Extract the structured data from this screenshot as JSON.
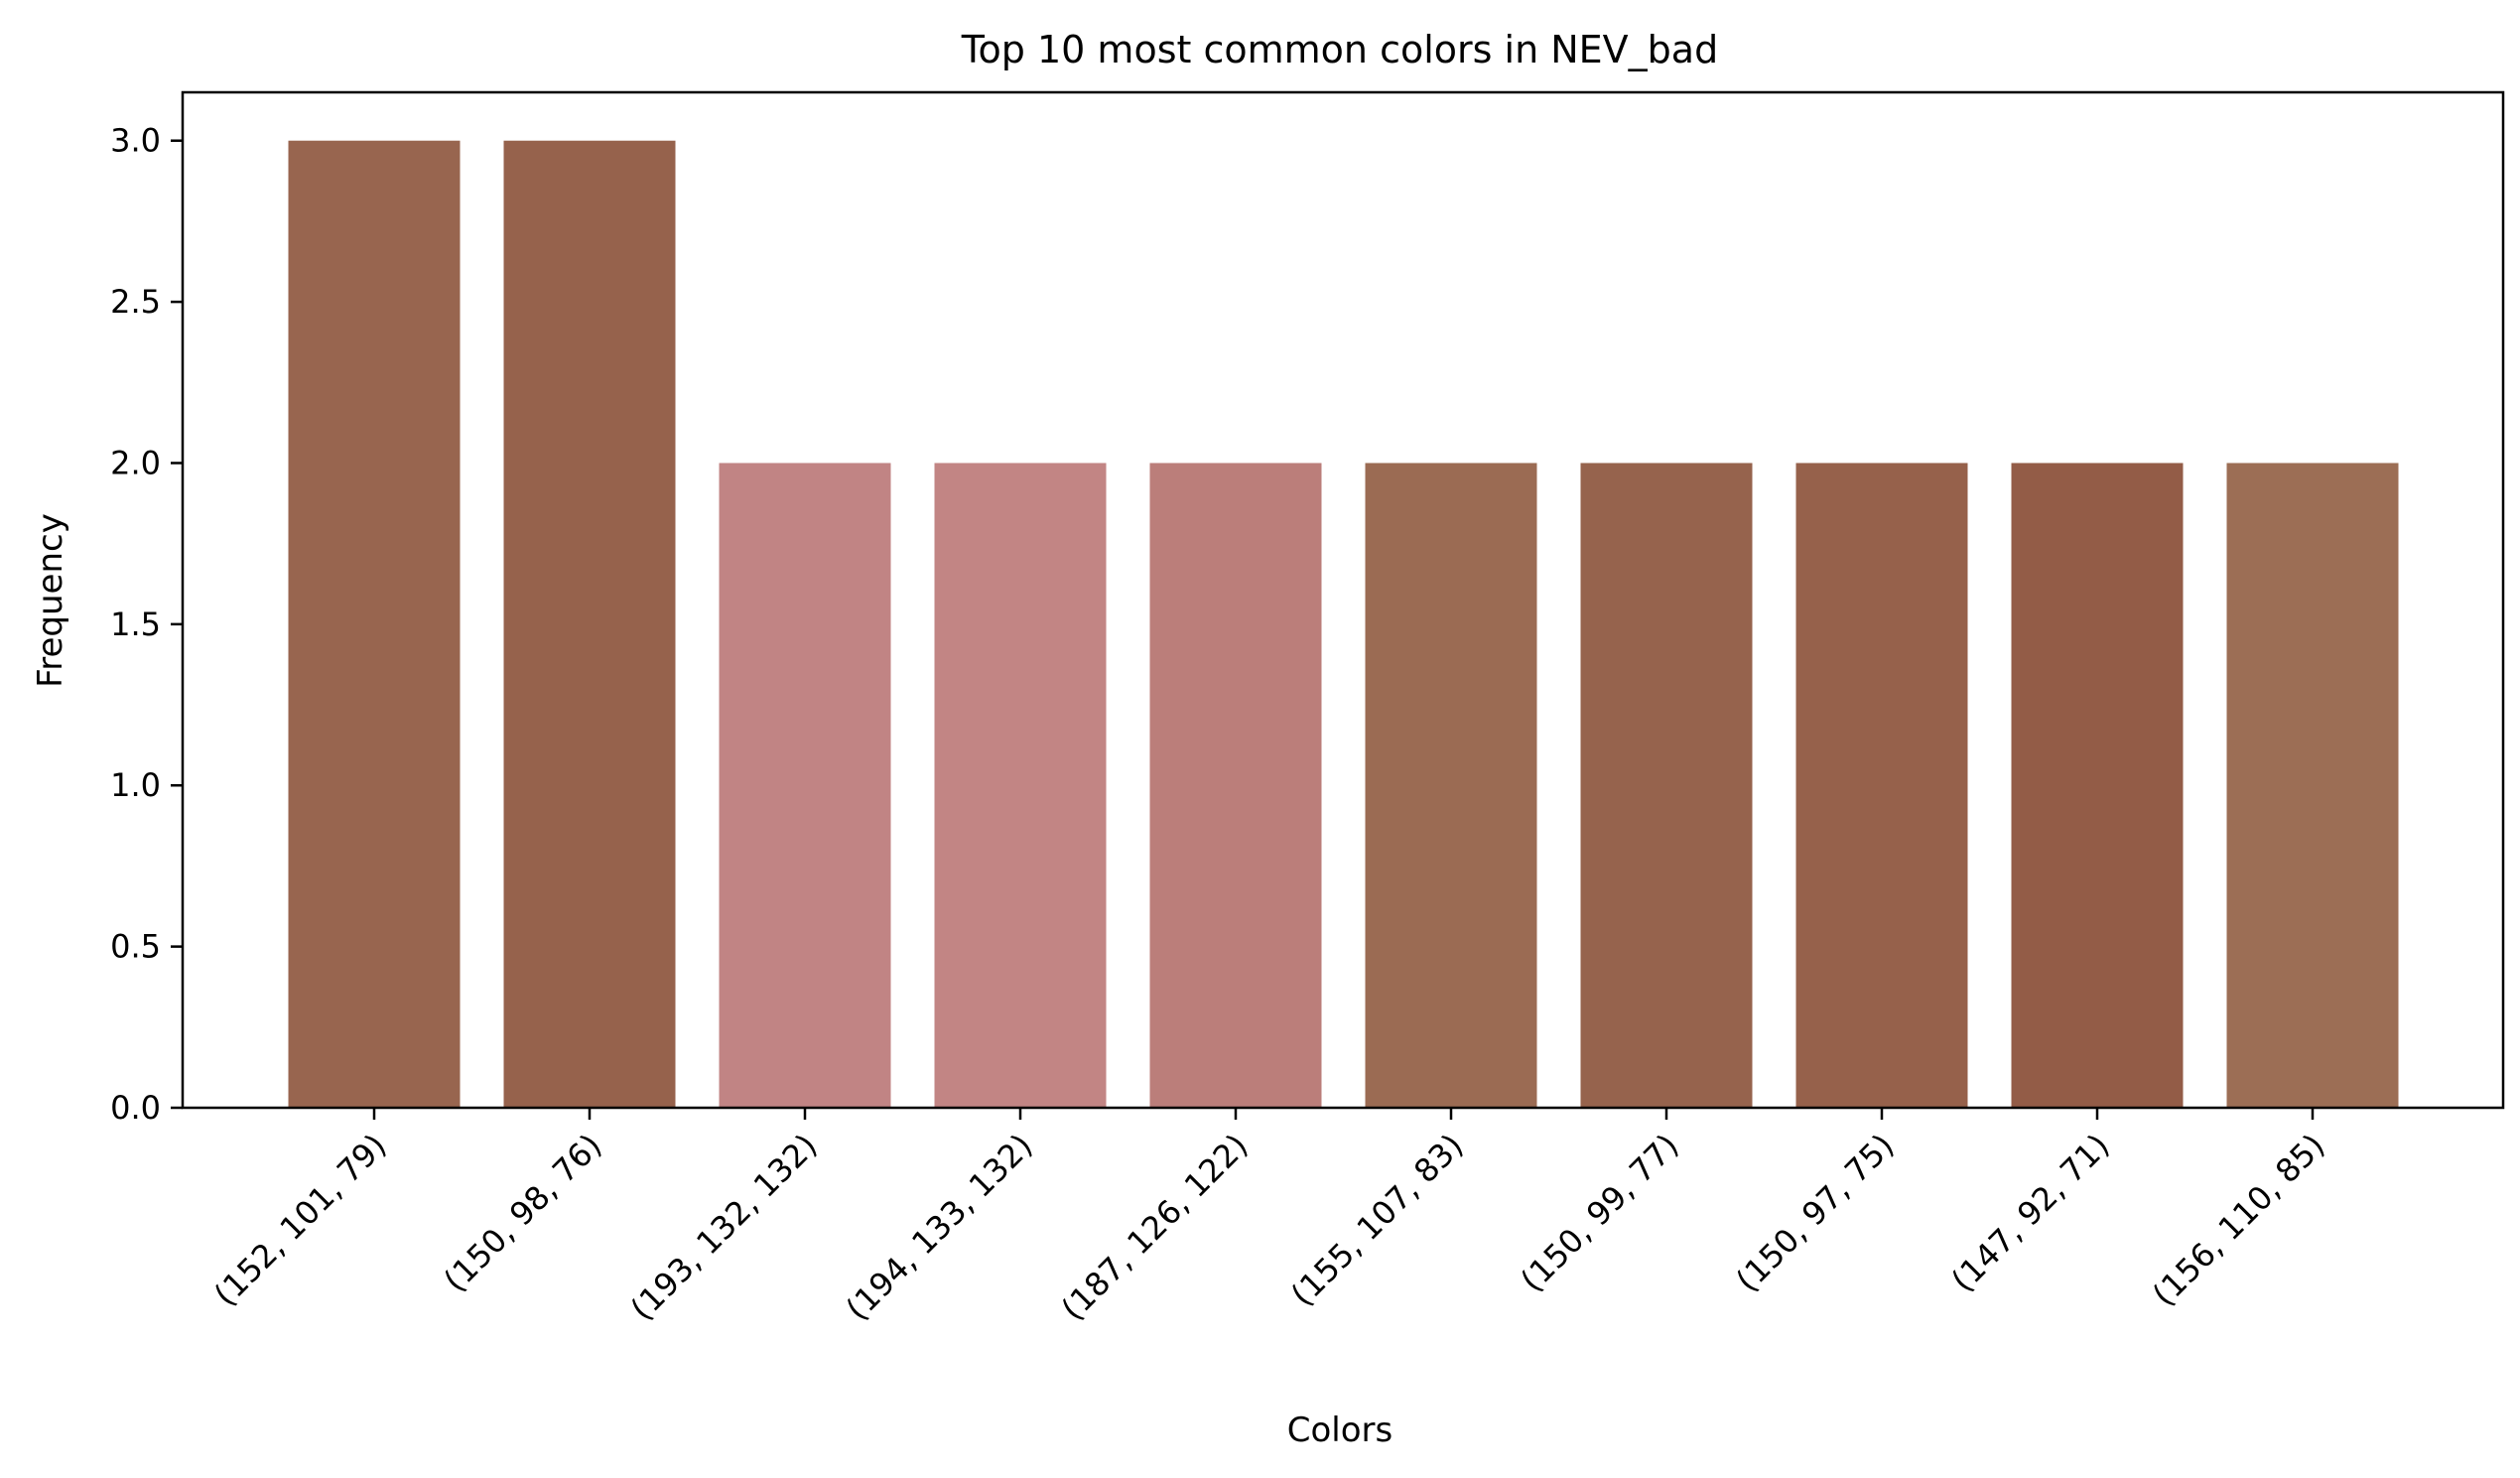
{
  "chart_data": {
    "type": "bar",
    "title": "Top 10 most common colors in NEV_bad",
    "xlabel": "Colors",
    "ylabel": "Frequency",
    "categories": [
      "(152, 101, 79)",
      "(150, 98, 76)",
      "(193, 132, 132)",
      "(194, 133, 132)",
      "(187, 126, 122)",
      "(155, 107, 83)",
      "(150, 99, 77)",
      "(150, 97, 75)",
      "(147, 92, 71)",
      "(156, 110, 85)"
    ],
    "values": [
      3,
      3,
      2,
      2,
      2,
      2,
      2,
      2,
      2,
      2
    ],
    "bar_colors": [
      "#98654f",
      "#96624c",
      "#c18484",
      "#c28584",
      "#bb7e7a",
      "#9b6b53",
      "#96634d",
      "#96614b",
      "#935c47",
      "#9c6e55"
    ],
    "ylim": [
      0,
      3.15
    ],
    "yticks": [
      "0.0",
      "0.5",
      "1.0",
      "1.5",
      "2.0",
      "2.5",
      "3.0"
    ],
    "grid": false,
    "legend": "none"
  }
}
